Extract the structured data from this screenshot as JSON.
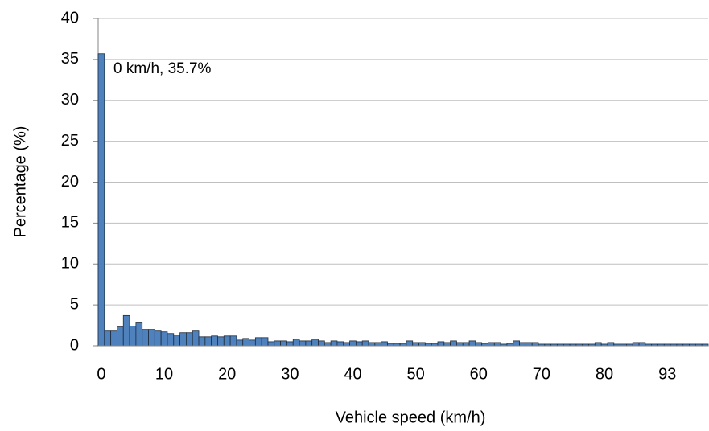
{
  "chart_data": {
    "type": "bar",
    "x_label": "Vehicle speed (km/h)",
    "y_label": "Percentage (%)",
    "annotation": "0 km/h, 35.7%",
    "color": "#4f81bd",
    "grid": true,
    "categories": [
      "0",
      null,
      null,
      null,
      null,
      null,
      null,
      null,
      null,
      null,
      "10",
      null,
      null,
      null,
      null,
      null,
      null,
      null,
      null,
      null,
      "20",
      null,
      null,
      null,
      null,
      null,
      null,
      null,
      null,
      null,
      "30",
      null,
      null,
      null,
      null,
      null,
      null,
      null,
      null,
      null,
      "40",
      null,
      null,
      null,
      null,
      null,
      null,
      null,
      null,
      null,
      "50",
      null,
      null,
      null,
      null,
      null,
      null,
      null,
      null,
      null,
      "60",
      null,
      null,
      null,
      null,
      null,
      null,
      null,
      null,
      null,
      "70",
      null,
      null,
      null,
      null,
      null,
      null,
      null,
      null,
      null,
      "80",
      null,
      null,
      null,
      null,
      null,
      null,
      null,
      null,
      null,
      "93",
      null,
      null,
      null,
      null,
      null,
      null
    ],
    "values": [
      35.7,
      1.8,
      1.8,
      2.3,
      3.7,
      2.4,
      2.8,
      2.0,
      2.0,
      1.8,
      1.7,
      1.5,
      1.3,
      1.6,
      1.6,
      1.8,
      1.1,
      1.1,
      1.2,
      1.1,
      1.2,
      1.2,
      0.7,
      0.9,
      0.7,
      1.0,
      1.0,
      0.5,
      0.6,
      0.6,
      0.5,
      0.8,
      0.6,
      0.6,
      0.8,
      0.6,
      0.4,
      0.6,
      0.5,
      0.4,
      0.6,
      0.5,
      0.6,
      0.4,
      0.4,
      0.5,
      0.3,
      0.3,
      0.3,
      0.6,
      0.4,
      0.4,
      0.3,
      0.3,
      0.5,
      0.4,
      0.6,
      0.4,
      0.4,
      0.6,
      0.4,
      0.3,
      0.4,
      0.4,
      0.2,
      0.3,
      0.6,
      0.4,
      0.4,
      0.4,
      0.2,
      0.2,
      0.2,
      0.2,
      0.2,
      0.2,
      0.2,
      0.2,
      0.2,
      0.4,
      0.2,
      0.4,
      0.2,
      0.2,
      0.2,
      0.4,
      0.4,
      0.2,
      0.2,
      0.2,
      0.2,
      0.2,
      0.2,
      0.2,
      0.2,
      0.2,
      0.2
    ],
    "ylim": [
      0,
      40
    ],
    "yticks": [
      0,
      5,
      10,
      15,
      20,
      25,
      30,
      35,
      40
    ]
  }
}
